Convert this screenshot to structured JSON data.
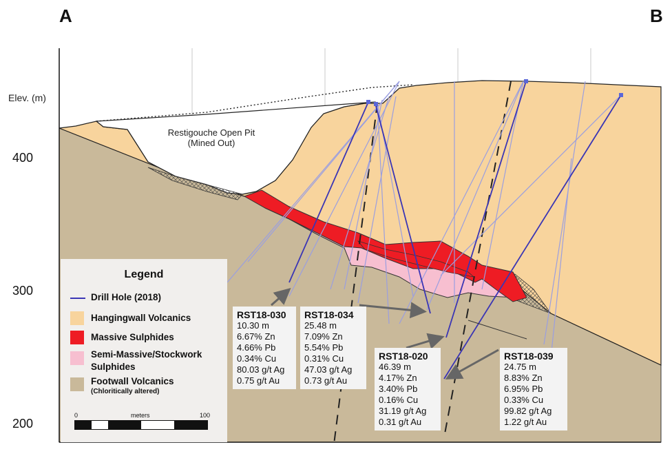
{
  "section": {
    "corner_left": "A",
    "corner_right": "B",
    "elevation_label": "Elev. (m)",
    "elevation_ticks": [
      "400",
      "300",
      "200"
    ],
    "pit_label_line1": "Restigouche Open Pit",
    "pit_label_line2": "(Mined Out)"
  },
  "legend": {
    "title": "Legend",
    "items": [
      {
        "label": "Drill Hole (2018)",
        "color": "#3a35b5"
      },
      {
        "label": "Hangingwall Volcanics",
        "color": "#f8d49d"
      },
      {
        "label": "Massive Sulphides",
        "color": "#ee1c24"
      },
      {
        "label": "Semi-Massive/Stockwork",
        "label2": "Sulphides",
        "color": "#f7bfd0"
      },
      {
        "label": "Footwall Volcanics",
        "sub": "(Chloritically altered)",
        "color": "#c9b99a"
      }
    ],
    "scale": {
      "start": "0",
      "unit": "meters",
      "end": "100"
    }
  },
  "callouts": [
    {
      "hole": "RST18-030",
      "lines": [
        "10.30 m",
        "6.67% Zn",
        "4.66% Pb",
        "0.34% Cu",
        "80.03 g/t Ag",
        "0.75 g/t Au"
      ]
    },
    {
      "hole": "RST18-034",
      "lines": [
        "25.48 m",
        "7.09% Zn",
        "5.54% Pb",
        "0.31% Cu",
        "47.03 g/t Ag",
        "0.73 g/t Au"
      ]
    },
    {
      "hole": "RST18-020",
      "lines": [
        "46.39 m",
        "4.17% Zn",
        "3.40% Pb",
        "0.16% Cu",
        "31.19 g/t Ag",
        "0.31 g/t Au"
      ]
    },
    {
      "hole": "RST18-039",
      "lines": [
        "24.75 m",
        "8.83% Zn",
        "6.95% Pb",
        "0.33% Cu",
        "99.82 g/t Ag",
        "1.22 g/t Au"
      ]
    }
  ],
  "colors": {
    "hangingwall": "#f8d49d",
    "footwall": "#c9b99a",
    "massive": "#ee1c24",
    "semi_massive": "#f7bfd0",
    "drill_2018": "#3a35b5",
    "drill_old": "#9a9ee0",
    "arrow": "#666666"
  }
}
